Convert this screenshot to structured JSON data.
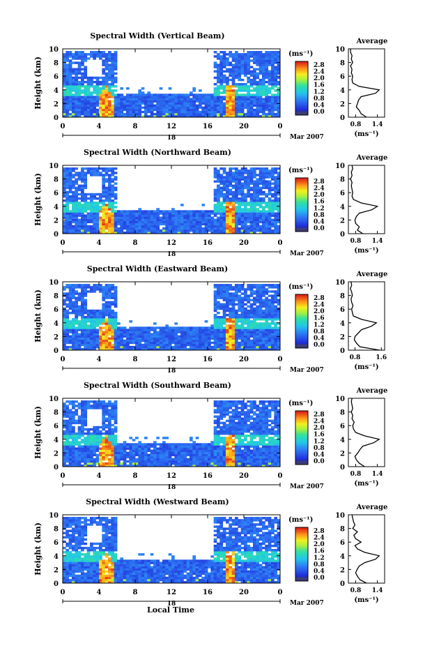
{
  "figure": {
    "xlabel": "Local Time",
    "date_row": {
      "day": "18",
      "month_year": "Mar 2007"
    }
  },
  "chart_data": [
    {
      "type": "heatmap",
      "title": "Spectral Width (Vertical Beam)",
      "ylabel": "Height (km)",
      "xticks": [
        "0",
        "4",
        "8",
        "12",
        "16",
        "20",
        "0"
      ],
      "yticks": [
        "0",
        "2",
        "4",
        "6",
        "8",
        "10"
      ],
      "xlim": [
        0,
        24
      ],
      "ylim": [
        0,
        10
      ],
      "colorbar": {
        "label": "(ms⁻¹)",
        "ticks": [
          "0.0",
          "0.4",
          "0.8",
          "1.2",
          "1.6",
          "2.0",
          "2.4",
          "2.8"
        ],
        "range": [
          0,
          3.0
        ]
      },
      "profile": {
        "title": "Average",
        "xlabel": "(ms⁻¹)",
        "xticks": [
          "0.8",
          "1.4"
        ],
        "xlim": [
          0.6,
          1.6
        ],
        "height": [
          0.0,
          0.5,
          1.0,
          1.5,
          2.0,
          2.5,
          3.0,
          3.5,
          4.0,
          4.5,
          5.0,
          5.5,
          6.0,
          6.5,
          7.0,
          7.5,
          8.0,
          8.5,
          9.0,
          9.5,
          10.0
        ],
        "values": [
          1.1,
          0.95,
          0.9,
          0.82,
          0.85,
          0.88,
          0.95,
          1.35,
          1.45,
          0.9,
          0.72,
          0.7,
          0.72,
          0.68,
          0.7,
          0.66,
          0.72,
          0.68,
          0.7,
          0.66,
          0.66
        ]
      }
    },
    {
      "type": "heatmap",
      "title": "Spectral Width (Northward Beam)",
      "ylabel": "Height (km)",
      "xticks": [
        "0",
        "4",
        "8",
        "12",
        "16",
        "20",
        "0"
      ],
      "yticks": [
        "0",
        "2",
        "4",
        "6",
        "8",
        "10"
      ],
      "xlim": [
        0,
        24
      ],
      "ylim": [
        0,
        10
      ],
      "colorbar": {
        "label": "(ms⁻¹)",
        "ticks": [
          "0.0",
          "0.4",
          "0.8",
          "1.2",
          "1.6",
          "2.0",
          "2.4",
          "2.8"
        ],
        "range": [
          0,
          3.0
        ]
      },
      "profile": {
        "title": "Average",
        "xlabel": "(ms⁻¹)",
        "xticks": [
          "0.8",
          "1.4"
        ],
        "xlim": [
          0.6,
          1.6
        ],
        "height": [
          0.0,
          0.5,
          1.0,
          1.5,
          2.0,
          2.5,
          3.0,
          3.5,
          4.0,
          4.5,
          5.0,
          5.5,
          6.0,
          6.5,
          7.0,
          7.5,
          8.0,
          8.5,
          9.0,
          9.5,
          10.0
        ],
        "values": [
          1.0,
          0.85,
          0.9,
          0.8,
          0.78,
          0.82,
          0.9,
          1.25,
          1.4,
          0.95,
          0.74,
          0.7,
          0.72,
          0.7,
          0.68,
          0.7,
          0.66,
          0.7,
          0.68,
          0.72,
          0.7
        ]
      }
    },
    {
      "type": "heatmap",
      "title": "Spectral Width (Eastward Beam)",
      "ylabel": "Height (km)",
      "xticks": [
        "0",
        "4",
        "8",
        "12",
        "16",
        "20",
        "0"
      ],
      "yticks": [
        "0",
        "2",
        "4",
        "6",
        "8",
        "10"
      ],
      "xlim": [
        0,
        24
      ],
      "ylim": [
        0,
        10
      ],
      "colorbar": {
        "label": "(ms⁻¹)",
        "ticks": [
          "0.0",
          "0.4",
          "0.8",
          "1.2",
          "1.6",
          "2.0",
          "2.4",
          "2.8"
        ],
        "range": [
          0,
          3.0
        ]
      },
      "profile": {
        "title": "Average",
        "xlabel": "(ms⁻¹)",
        "xticks": [
          "0.8",
          "1.6"
        ],
        "xlim": [
          0.6,
          1.7
        ],
        "height": [
          0.0,
          0.5,
          1.0,
          1.5,
          2.0,
          2.5,
          3.0,
          3.5,
          4.0,
          4.5,
          5.0,
          5.5,
          6.0,
          6.5,
          7.0,
          7.5,
          8.0,
          8.5,
          9.0,
          9.5,
          10.0
        ],
        "values": [
          1.55,
          0.95,
          0.85,
          0.78,
          0.8,
          0.9,
          1.0,
          1.3,
          1.45,
          1.0,
          0.75,
          0.72,
          0.7,
          0.74,
          0.7,
          0.68,
          0.72,
          0.7,
          0.66,
          0.7,
          0.68
        ]
      }
    },
    {
      "type": "heatmap",
      "title": "Spectral Width (Southward Beam)",
      "ylabel": "Height (km)",
      "xticks": [
        "0",
        "4",
        "8",
        "12",
        "16",
        "20",
        "0"
      ],
      "yticks": [
        "0",
        "2",
        "4",
        "6",
        "8",
        "10"
      ],
      "xlim": [
        0,
        24
      ],
      "ylim": [
        0,
        10
      ],
      "colorbar": {
        "label": "(ms⁻¹)",
        "ticks": [
          "0.0",
          "0.4",
          "0.8",
          "1.2",
          "1.6",
          "2.0",
          "2.4",
          "2.8"
        ],
        "range": [
          0,
          3.0
        ]
      },
      "profile": {
        "title": "Average",
        "xlabel": "(ms⁻¹)",
        "xticks": [
          "0.8",
          "1.4"
        ],
        "xlim": [
          0.6,
          1.6
        ],
        "height": [
          0.0,
          0.5,
          1.0,
          1.5,
          2.0,
          2.5,
          3.0,
          3.5,
          4.0,
          4.5,
          5.0,
          5.5,
          6.0,
          6.5,
          7.0,
          7.5,
          8.0,
          8.5,
          9.0,
          9.5,
          10.0
        ],
        "values": [
          1.05,
          0.9,
          0.82,
          0.78,
          0.86,
          0.92,
          1.0,
          1.3,
          1.45,
          1.05,
          0.8,
          0.74,
          0.72,
          0.76,
          0.7,
          0.72,
          0.68,
          0.72,
          0.7,
          0.68,
          0.7
        ]
      }
    },
    {
      "type": "heatmap",
      "title": "Spectral Width (Westward Beam)",
      "ylabel": "Height (km)",
      "xticks": [
        "0",
        "4",
        "8",
        "12",
        "16",
        "20",
        "0"
      ],
      "yticks": [
        "0",
        "2",
        "4",
        "6",
        "8",
        "10"
      ],
      "xlim": [
        0,
        24
      ],
      "ylim": [
        0,
        10
      ],
      "colorbar": {
        "label": "(ms⁻¹)",
        "ticks": [
          "0.0",
          "0.4",
          "0.8",
          "1.2",
          "1.6",
          "2.0",
          "2.4",
          "2.8"
        ],
        "range": [
          0,
          3.0
        ]
      },
      "profile": {
        "title": "Average",
        "xlabel": "(ms⁻¹)",
        "xticks": [
          "0.8",
          "1.4"
        ],
        "xlim": [
          0.6,
          1.6
        ],
        "height": [
          0.0,
          0.5,
          1.0,
          1.5,
          2.0,
          2.5,
          3.0,
          3.5,
          4.0,
          4.5,
          5.0,
          5.5,
          6.0,
          6.5,
          7.0,
          7.5,
          8.0,
          8.5,
          9.0,
          9.5,
          10.0
        ],
        "values": [
          1.1,
          0.92,
          0.85,
          0.8,
          0.84,
          0.9,
          1.05,
          1.35,
          1.45,
          1.05,
          0.85,
          0.78,
          0.95,
          0.8,
          0.75,
          0.85,
          0.72,
          0.78,
          0.74,
          0.72,
          0.7
        ]
      }
    }
  ]
}
